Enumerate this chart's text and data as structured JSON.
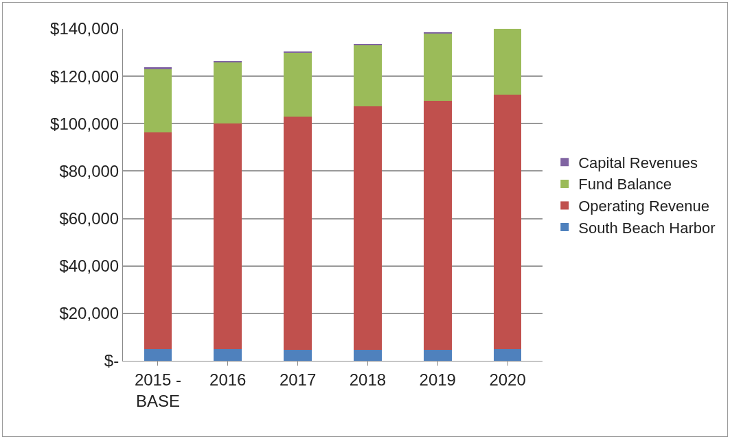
{
  "chart_data": {
    "type": "bar",
    "stacked": true,
    "categories": [
      "2015 -\nBASE",
      "2016",
      "2017",
      "2018",
      "2019",
      "2020"
    ],
    "series": [
      {
        "name": "South Beach Harbor",
        "color": "#4f81bd",
        "values": [
          5000,
          5000,
          4500,
          4500,
          4500,
          5000
        ]
      },
      {
        "name": "Operating Revenue",
        "color": "#c0504d",
        "values": [
          91300,
          95200,
          98600,
          102900,
          105200,
          107200
        ]
      },
      {
        "name": "Fund Balance",
        "color": "#9bbb59",
        "values": [
          26900,
          25700,
          26900,
          25600,
          28500,
          27800
        ]
      },
      {
        "name": "Capital Revenues",
        "color": "#8064a2",
        "values": [
          500,
          600,
          400,
          600,
          400,
          null
        ]
      }
    ],
    "ylim": [
      0,
      140000
    ],
    "yticks": [
      {
        "value": 0,
        "label": "$-"
      },
      {
        "value": 20000,
        "label": "$20,000"
      },
      {
        "value": 40000,
        "label": "$40,000"
      },
      {
        "value": 60000,
        "label": "$60,000"
      },
      {
        "value": 80000,
        "label": "$80,000"
      },
      {
        "value": 100000,
        "label": "$100,000"
      },
      {
        "value": 120000,
        "label": "$120,000"
      },
      {
        "value": 140000,
        "label": "$140,000"
      }
    ],
    "grid": "y",
    "legend": "right"
  }
}
